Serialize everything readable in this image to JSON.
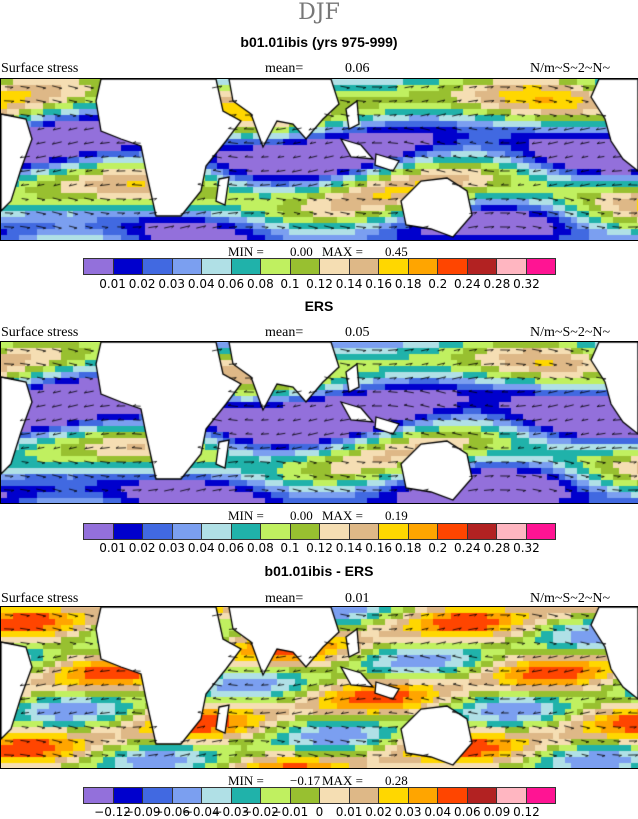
{
  "title": "DJF",
  "colors": [
    "#9370db",
    "#0000cd",
    "#4169e1",
    "#7b9ff0",
    "#b0e0e6",
    "#20b2aa",
    "#c0f060",
    "#98c030",
    "#f5deb3",
    "#deb887",
    "#ffd700",
    "#ffa500",
    "#ff4500",
    "#b22222",
    "#ffb6c1",
    "#ff1493"
  ],
  "panels": [
    {
      "subtitle": "b01.01ibis (yrs 975-999)",
      "left": "Surface stress",
      "mean_label": "mean=",
      "mean": "0.06",
      "units": "N/m~S~2~N~",
      "min_label": "MIN =",
      "min": "0.00",
      "max_label": "MAX =",
      "max": "0.45",
      "levels": [
        "0.01",
        "0.02",
        "0.03",
        "0.04",
        "0.06",
        "0.08",
        "0.1",
        "0.12",
        "0.14",
        "0.16",
        "0.18",
        "0.2",
        "0.24",
        "0.28",
        "0.32"
      ]
    },
    {
      "subtitle": "ERS",
      "left": "Surface stress",
      "mean_label": "mean=",
      "mean": "0.05",
      "units": "N/m~S~2~N~",
      "min_label": "MIN =",
      "min": "0.00",
      "max_label": "MAX =",
      "max": "0.19",
      "levels": [
        "0.01",
        "0.02",
        "0.03",
        "0.04",
        "0.06",
        "0.08",
        "0.1",
        "0.12",
        "0.14",
        "0.16",
        "0.18",
        "0.2",
        "0.24",
        "0.28",
        "0.32"
      ]
    },
    {
      "subtitle": "b01.01ibis - ERS",
      "left": "Surface stress",
      "mean_label": "mean=",
      "mean": "0.01",
      "units": "N/m~S~2~N~",
      "min_label": "MIN =",
      "min": "−0.17",
      "max_label": "MAX =",
      "max": "0.28",
      "levels": [
        "−0.12",
        "−0.09",
        "−0.06",
        "−0.04",
        "−0.03",
        "−0.02",
        "−0.01",
        "0",
        "0.01",
        "0.02",
        "0.03",
        "0.04",
        "0.06",
        "0.09",
        "0.12"
      ]
    }
  ]
}
